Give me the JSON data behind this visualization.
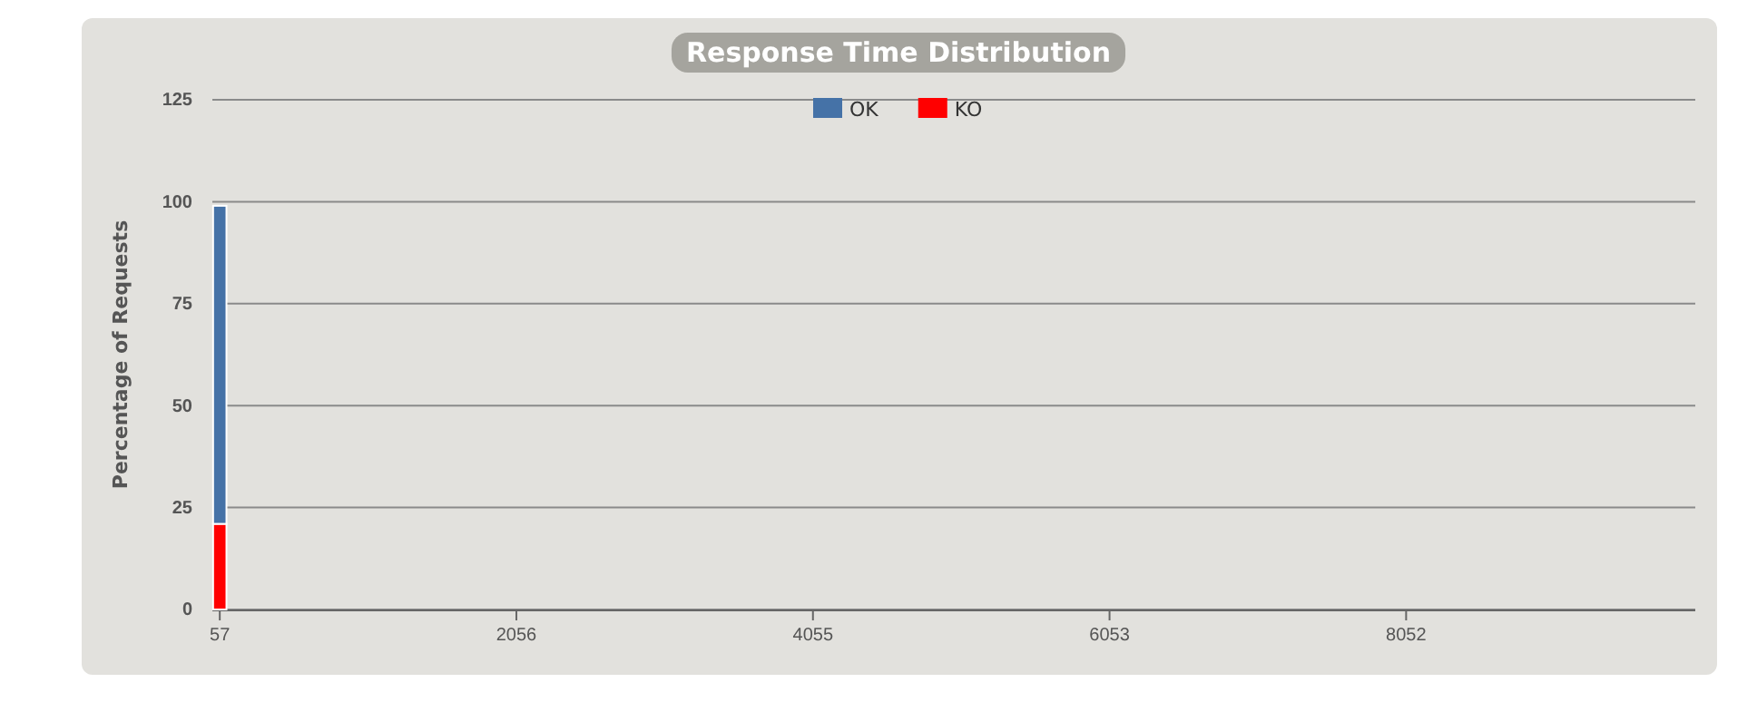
{
  "chart_data": {
    "type": "bar",
    "title": "Response Time Distribution",
    "ylabel": "Percentage of Requests",
    "categories": [
      "57",
      null,
      null,
      null,
      null,
      null,
      null,
      null,
      null,
      null,
      null,
      null,
      null,
      null,
      null,
      null,
      null,
      null,
      null,
      null,
      "2056",
      null,
      null,
      null,
      null,
      null,
      null,
      null,
      null,
      null,
      null,
      null,
      null,
      null,
      null,
      null,
      null,
      null,
      null,
      null,
      "4055",
      null,
      null,
      null,
      null,
      null,
      null,
      null,
      null,
      null,
      null,
      null,
      null,
      null,
      null,
      null,
      null,
      null,
      null,
      null,
      "6053",
      null,
      null,
      null,
      null,
      null,
      null,
      null,
      null,
      null,
      null,
      null,
      null,
      null,
      null,
      null,
      null,
      null,
      null,
      null,
      "8052",
      null,
      null,
      null,
      null,
      null,
      null,
      null,
      null,
      null,
      null,
      null,
      null,
      null,
      null,
      null,
      null,
      null,
      null,
      null
    ],
    "stacked": true,
    "series": [
      {
        "name": "KO",
        "color": "#ff0000",
        "values": [
          21,
          0,
          0,
          0,
          0,
          0,
          0,
          0,
          0,
          0,
          0,
          0,
          0,
          0,
          0,
          0,
          0,
          0,
          0,
          0,
          0,
          0,
          0,
          0,
          0,
          0,
          0,
          0,
          0,
          0,
          0,
          0,
          0,
          0,
          0,
          0,
          0,
          0,
          0,
          0,
          0,
          0,
          0,
          0,
          0,
          0,
          0,
          0,
          0,
          0,
          0,
          0,
          0,
          0,
          0,
          0,
          0,
          0,
          0,
          0,
          0,
          0,
          0,
          0,
          0,
          0,
          0,
          0,
          0,
          0,
          0,
          0,
          0,
          0,
          0,
          0,
          0,
          0,
          0,
          0,
          0,
          0,
          0,
          0,
          0,
          0,
          0,
          0,
          0,
          0,
          0,
          0,
          0,
          0,
          0,
          0,
          0,
          0,
          0,
          0
        ]
      },
      {
        "name": "OK",
        "color": "#4572a7",
        "values": [
          78,
          0,
          0,
          0,
          0,
          0,
          0,
          0,
          0,
          0,
          0,
          0,
          0,
          0,
          0,
          0,
          0,
          0,
          0,
          0,
          0,
          0,
          0,
          0,
          0,
          0,
          0,
          0,
          0,
          0,
          0,
          0,
          0,
          0,
          0,
          0,
          0,
          0,
          0,
          0,
          0,
          0,
          0,
          0,
          0,
          0,
          0,
          0,
          0,
          0,
          0,
          0,
          0,
          0,
          0,
          0,
          0,
          0,
          0,
          0,
          0,
          0,
          0,
          0,
          0,
          0,
          0,
          0,
          0,
          0,
          0,
          0,
          0,
          0,
          0,
          0,
          0,
          0,
          0,
          0,
          0,
          0,
          0,
          0,
          0,
          0,
          0,
          0,
          0,
          0,
          0,
          0,
          0,
          0,
          0,
          0,
          0,
          0,
          0,
          0
        ]
      }
    ],
    "ylim": [
      0,
      125
    ],
    "yticks": [
      0,
      25,
      50,
      75,
      100,
      125
    ],
    "grid": "y",
    "legend": "top"
  }
}
